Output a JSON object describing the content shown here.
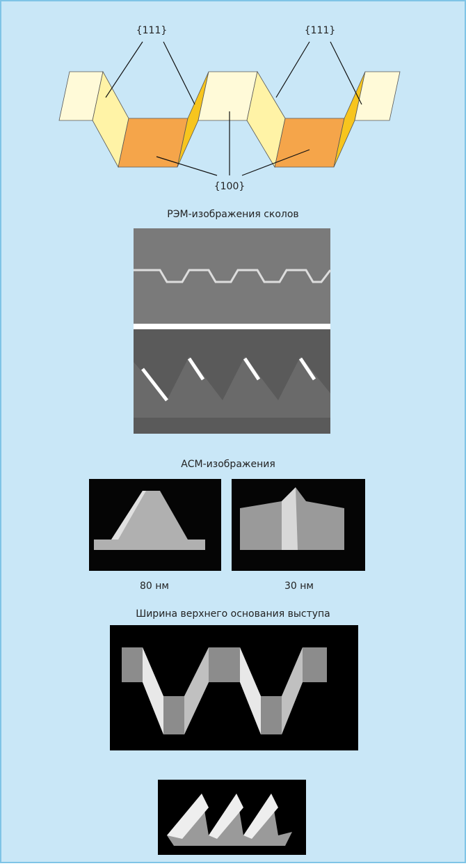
{
  "diagram": {
    "facet_labels": [
      "{111}",
      "{111}",
      "{100}"
    ]
  },
  "sem": {
    "title": "РЭМ-изображения сколов"
  },
  "afm": {
    "title": "АСМ-изображения",
    "captions": [
      "80 нм",
      "30 нм"
    ]
  },
  "top_width": {
    "title": "Ширина верхнего основания выступа"
  }
}
